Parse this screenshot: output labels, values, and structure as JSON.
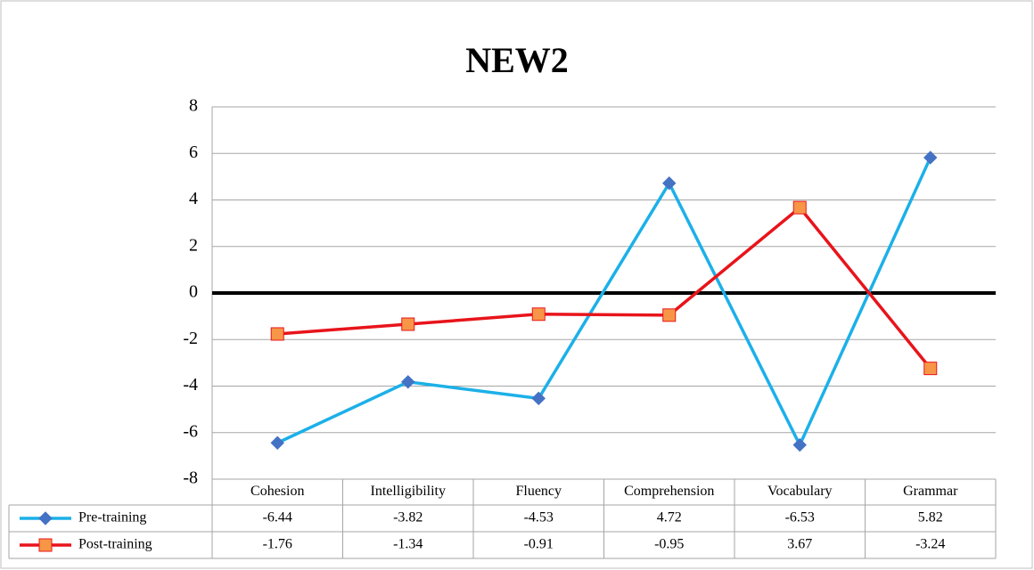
{
  "chart_data": {
    "type": "line",
    "title": "NEW2",
    "categories": [
      "Cohesion",
      "Intelligibility",
      "Fluency",
      "Comprehension",
      "Vocabulary",
      "Grammar"
    ],
    "series": [
      {
        "name": "Pre-training",
        "color": "#1cb0e8",
        "marker": "diamond",
        "marker_color": "#4472c4",
        "values": [
          -6.44,
          -3.82,
          -4.53,
          4.72,
          -6.53,
          5.82
        ]
      },
      {
        "name": "Post-training",
        "color": "#e8141b",
        "marker": "square",
        "marker_color": "#f79646",
        "values": [
          -1.76,
          -1.34,
          -0.91,
          -0.95,
          3.67,
          -3.24
        ]
      }
    ],
    "ylim": [
      -8,
      8
    ],
    "yticks": [
      -8,
      -6,
      -4,
      -2,
      0,
      2,
      4,
      6,
      8
    ],
    "grid": true,
    "data_table": true
  }
}
